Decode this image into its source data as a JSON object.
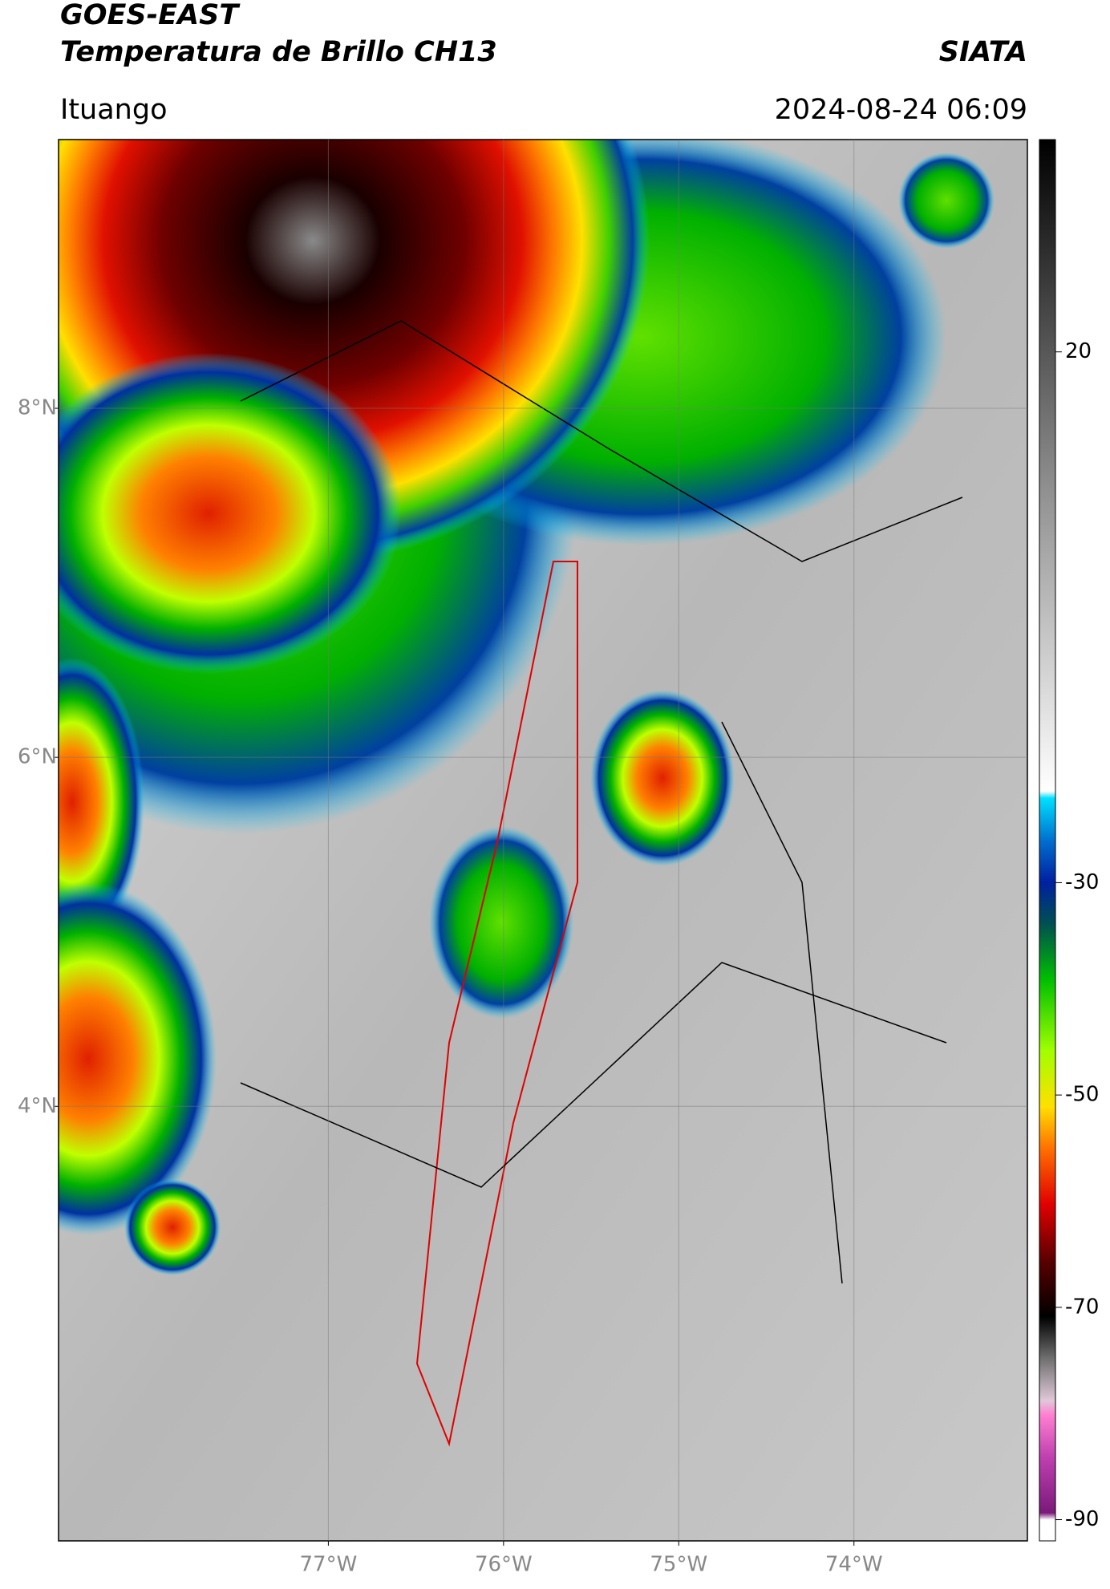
{
  "header": {
    "title": "GOES-EAST",
    "subtitle": "Temperatura de Brillo CH13",
    "source": "SIATA",
    "location": "Ituango",
    "datetime": "2024-08-24 06:09"
  },
  "map": {
    "xlim": [
      -78.54,
      -73.01
    ],
    "ylim": [
      1.51,
      9.54
    ],
    "lat_ticks": [
      {
        "value": 8,
        "label": "8°N"
      },
      {
        "value": 6,
        "label": "6°N"
      },
      {
        "value": 4,
        "label": "4°N"
      }
    ],
    "lon_ticks": [
      {
        "value": -77,
        "label": "77°W"
      },
      {
        "value": -76,
        "label": "76°W"
      },
      {
        "value": -75,
        "label": "75°W"
      },
      {
        "value": -74,
        "label": "74°W"
      }
    ]
  },
  "colorbar": {
    "range": [
      -92,
      40
    ],
    "ticks": [
      20,
      -30,
      -50,
      -70,
      -90
    ]
  }
}
